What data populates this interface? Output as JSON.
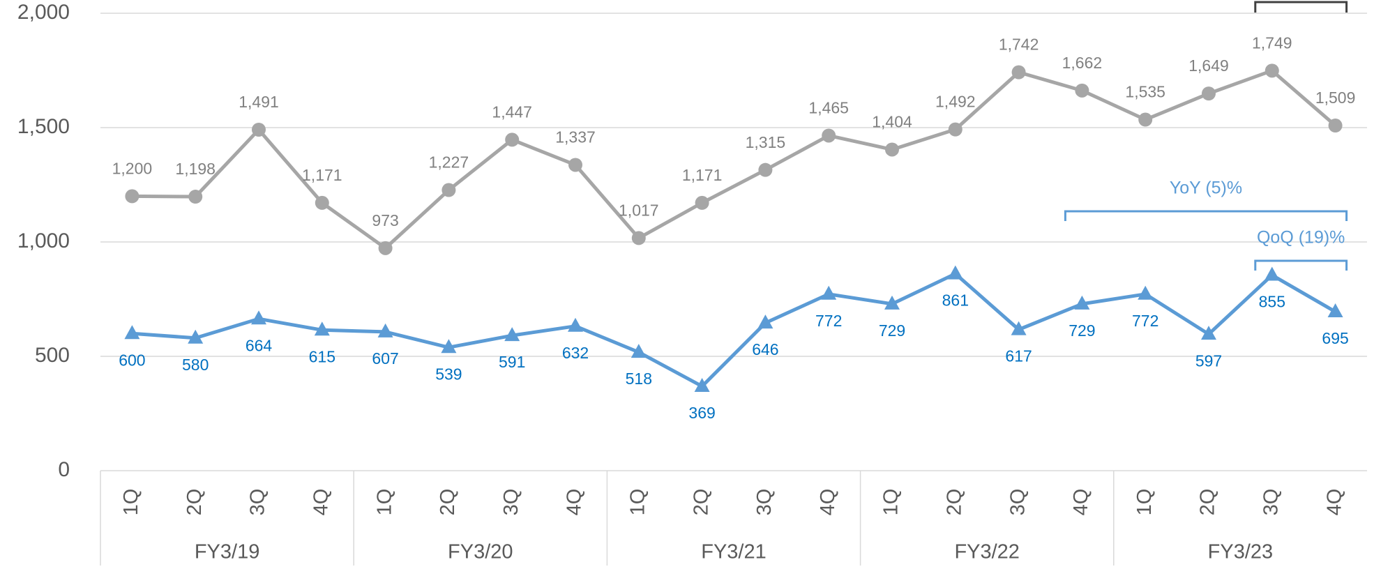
{
  "chart_data": {
    "type": "line",
    "categories": [
      "1Q",
      "2Q",
      "3Q",
      "4Q",
      "1Q",
      "2Q",
      "3Q",
      "4Q",
      "1Q",
      "2Q",
      "3Q",
      "4Q",
      "1Q",
      "2Q",
      "3Q",
      "4Q",
      "1Q",
      "2Q",
      "3Q",
      "4Q"
    ],
    "groups": [
      "FY3/19",
      "FY3/20",
      "FY3/21",
      "FY3/22",
      "FY3/23"
    ],
    "series": [
      {
        "color": "#a6a6a6",
        "label_color": "#808080",
        "marker": "circle",
        "values": [
          1200,
          1198,
          1491,
          1171,
          973,
          1227,
          1447,
          1337,
          1017,
          1171,
          1315,
          1465,
          1404,
          1492,
          1742,
          1662,
          1535,
          1649,
          1749,
          1509
        ],
        "value_labels": [
          "1,200",
          "1,198",
          "1,491",
          "1,171",
          "973",
          "1,227",
          "1,447",
          "1,337",
          "1,017",
          "1,171",
          "1,315",
          "1,465",
          "1,404",
          "1,492",
          "1,742",
          "1,662",
          "1,535",
          "1,649",
          "1,749",
          "1,509"
        ]
      },
      {
        "color": "#5b9bd5",
        "label_color": "#0070c0",
        "marker": "triangle",
        "values": [
          600,
          580,
          664,
          615,
          607,
          539,
          591,
          632,
          518,
          369,
          646,
          772,
          729,
          861,
          617,
          729,
          772,
          597,
          855,
          695
        ]
      }
    ],
    "ylim": [
      0,
      2000
    ],
    "yticks": [
      0,
      500,
      {
        "value": 1000,
        "label": "1,000"
      },
      {
        "value": 1500,
        "label": "1,500"
      },
      {
        "value": 2000,
        "label": "2,000"
      }
    ],
    "grid": true,
    "annotations": [
      {
        "text": "YoY (5)%",
        "from": 15,
        "to": 19,
        "color": "#5b9bd5"
      },
      {
        "text": "QoQ (19)%",
        "from": 18,
        "to": 19,
        "color": "#5b9bd5"
      }
    ]
  }
}
